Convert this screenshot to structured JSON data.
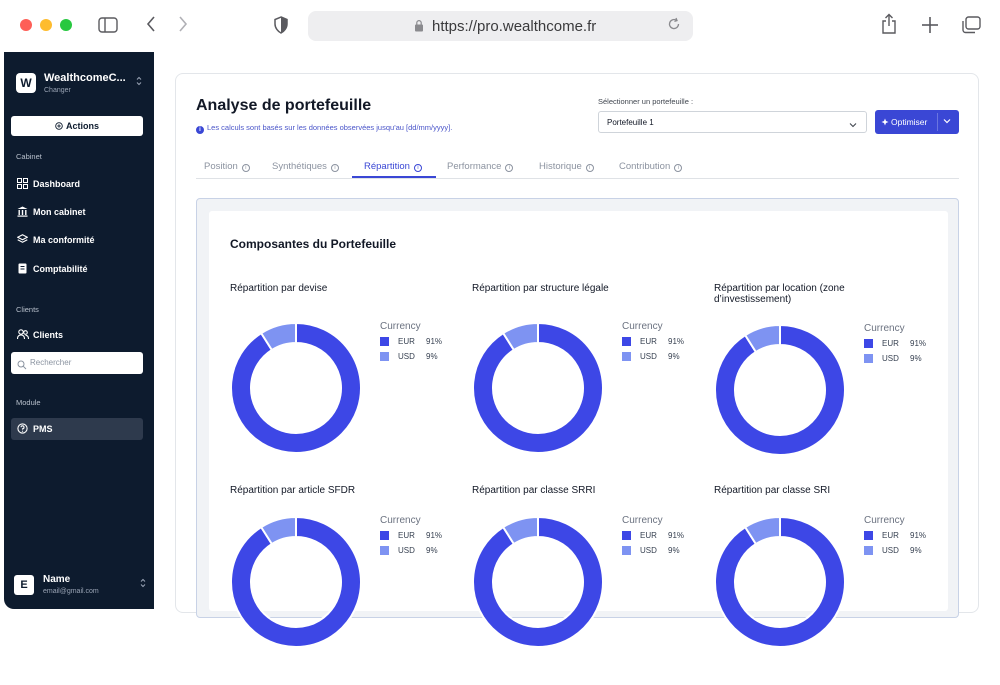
{
  "browser": {
    "url": "https://pro.wealthcome.fr"
  },
  "sidebar": {
    "workspace_name": "WealthcomeC...",
    "workspace_sub": "Changer",
    "logo_letter": "W",
    "actions_label": "Actions",
    "section_cabinet": "Cabinet",
    "items_cabinet": [
      "Dashboard",
      "Mon cabinet",
      "Ma conformité",
      "Comptabilité"
    ],
    "section_clients": "Clients",
    "item_clients": "Clients",
    "search_placeholder": "Rechercher",
    "section_module": "Module",
    "item_pms": "PMS",
    "user_initial": "E",
    "user_name": "Name",
    "user_email": "email@gmail.com"
  },
  "main": {
    "title": "Analyse de portefeuille",
    "note": "Les calculs sont basés sur les données observées jusqu'au [dd/mm/yyyy].",
    "select_label": "Sélectionner un portefeuille :",
    "select_value": "Portefeuille 1",
    "optimize_label": "Optimiser",
    "tabs": [
      "Position",
      "Synthétiques",
      "Répartition",
      "Performance",
      "Historique",
      "Contribution"
    ],
    "active_tab": "Répartition",
    "section_title": "Composantes du Portefeuille"
  },
  "colors": {
    "eur": "#3d47e6",
    "usd": "#7e93f2",
    "accent": "#3a47d5",
    "sidebar_bg": "#0d1b2e"
  },
  "chart_data": [
    {
      "type": "pie",
      "title": "Répartition par devise",
      "legend_title": "Currency",
      "categories": [
        "EUR",
        "USD"
      ],
      "values": [
        91,
        9
      ],
      "labels": [
        "91%",
        "9%"
      ]
    },
    {
      "type": "pie",
      "title": "Répartition par structure légale",
      "legend_title": "Currency",
      "categories": [
        "EUR",
        "USD"
      ],
      "values": [
        91,
        9
      ],
      "labels": [
        "91%",
        "9%"
      ]
    },
    {
      "type": "pie",
      "title": "Répartition par location (zone d’investissement)",
      "legend_title": "Currency",
      "categories": [
        "EUR",
        "USD"
      ],
      "values": [
        91,
        9
      ],
      "labels": [
        "91%",
        "9%"
      ]
    },
    {
      "type": "pie",
      "title": "Répartition par article SFDR",
      "legend_title": "Currency",
      "categories": [
        "EUR",
        "USD"
      ],
      "values": [
        91,
        9
      ],
      "labels": [
        "91%",
        "9%"
      ]
    },
    {
      "type": "pie",
      "title": "Répartition par classe SRRI",
      "legend_title": "Currency",
      "categories": [
        "EUR",
        "USD"
      ],
      "values": [
        91,
        9
      ],
      "labels": [
        "91%",
        "9%"
      ]
    },
    {
      "type": "pie",
      "title": "Répartition par classe SRI",
      "legend_title": "Currency",
      "categories": [
        "EUR",
        "USD"
      ],
      "values": [
        91,
        9
      ],
      "labels": [
        "91%",
        "9%"
      ]
    }
  ]
}
